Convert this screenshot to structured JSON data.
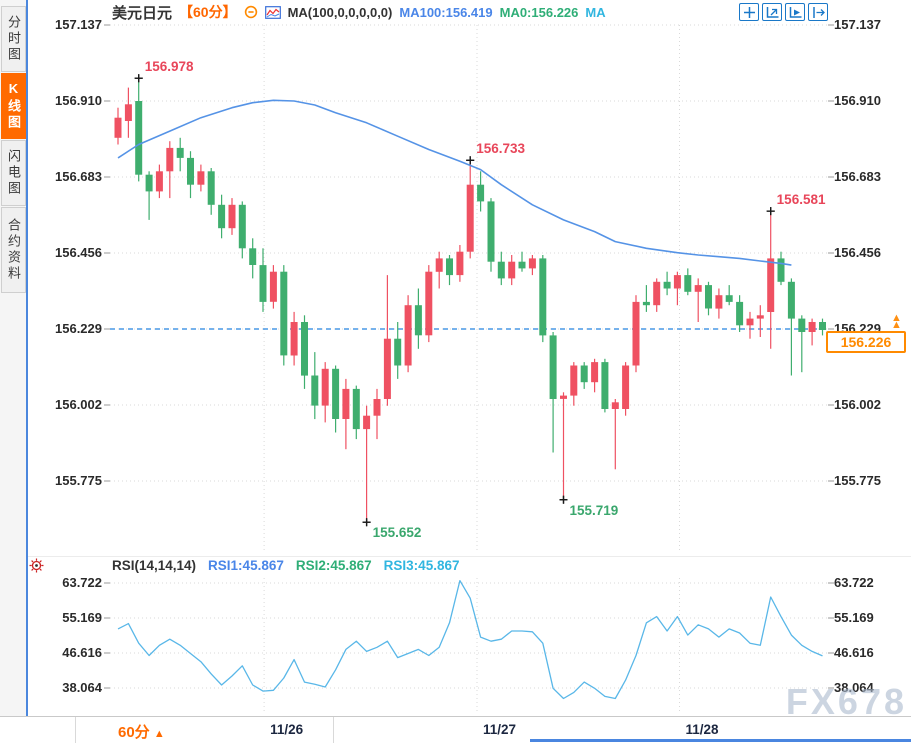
{
  "colors": {
    "up": "#ef5162",
    "down": "#3fae6e",
    "ma_line": "#5593e6",
    "rsi_line": "#59b7e8",
    "grid": "#d9d9d9",
    "dashed_price_line": "#2583e0",
    "accent_orange": "#ff6600",
    "price_box_orange": "#ff8a00",
    "annotation_red": "#e8465a",
    "annotation_green": "#3aa76d",
    "icon_blue": "#1a78c8",
    "tick": "#999999",
    "cross_marker": "#1a1a1a"
  },
  "sidebar": {
    "tabs": [
      {
        "label": "分时图",
        "active": false
      },
      {
        "label": "K线图",
        "active": true
      },
      {
        "label": "闪电图",
        "active": false
      },
      {
        "label": "合约资料",
        "active": false
      }
    ]
  },
  "header": {
    "symbol": "美元日元",
    "period": "【60分】",
    "collapse_icon": "minus-circle",
    "indicator_icon": "mini-chart",
    "ma_settings": "MA(100,0,0,0,0,0)",
    "ma100": "MA100:156.419",
    "ma0": "MA0:156.226",
    "ma_extra": "MA",
    "toolbar_icons": [
      "crosshair-icon",
      "axis-zoom-vertical-icon",
      "axis-zoom-horizontal-icon",
      "pan-right-icon"
    ]
  },
  "rsi_header": {
    "name": "RSI(14,14,14)",
    "rsi1": "RSI1:45.867",
    "rsi2": "RSI2:45.867",
    "rsi3": "RSI3:45.867"
  },
  "current_price": {
    "value": "156.226",
    "line_label": "156.229"
  },
  "footer": {
    "period_label": "60分",
    "arrow": "▲"
  },
  "watermark": "FX678",
  "chart_data": [
    {
      "type": "candlestick",
      "title": "美元日元 60分 K线图",
      "price_ticks": [
        157.137,
        156.91,
        156.683,
        156.456,
        156.229,
        156.002,
        155.775
      ],
      "dashed_line_price": 156.229,
      "current_price": 156.226,
      "ma100_last": 156.419,
      "ma0_last": 156.226,
      "x_labels": [
        "11/26",
        "11/27",
        "11/28"
      ],
      "day_start_bars": [
        14.1,
        34.65,
        54.2
      ],
      "annotations": [
        {
          "text": "156.978",
          "price": 156.978,
          "bar": 2,
          "pos": "top",
          "color": "#e8465a"
        },
        {
          "text": "156.733",
          "price": 156.733,
          "bar": 34,
          "pos": "top",
          "color": "#e8465a"
        },
        {
          "text": "156.581",
          "price": 156.581,
          "bar": 63,
          "pos": "top",
          "color": "#e8465a"
        },
        {
          "text": "155.652",
          "price": 155.652,
          "bar": 24,
          "pos": "bottom",
          "color": "#3aa76d"
        },
        {
          "text": "155.719",
          "price": 155.719,
          "bar": 43,
          "pos": "bottom",
          "color": "#3aa76d"
        }
      ],
      "candles": [
        [
          156.8,
          156.89,
          156.78,
          156.86
        ],
        [
          156.85,
          156.95,
          156.8,
          156.9
        ],
        [
          156.91,
          156.978,
          156.67,
          156.69
        ],
        [
          156.69,
          156.7,
          156.555,
          156.64
        ],
        [
          156.64,
          156.72,
          156.62,
          156.7
        ],
        [
          156.7,
          156.79,
          156.62,
          156.77
        ],
        [
          156.77,
          156.8,
          156.7,
          156.74
        ],
        [
          156.74,
          156.76,
          156.62,
          156.66
        ],
        [
          156.66,
          156.72,
          156.64,
          156.7
        ],
        [
          156.7,
          156.71,
          156.57,
          156.6
        ],
        [
          156.6,
          156.63,
          156.5,
          156.53
        ],
        [
          156.53,
          156.62,
          156.51,
          156.6
        ],
        [
          156.6,
          156.61,
          156.44,
          156.47
        ],
        [
          156.47,
          156.5,
          156.38,
          156.42
        ],
        [
          156.42,
          156.47,
          156.28,
          156.31
        ],
        [
          156.31,
          156.42,
          156.29,
          156.4
        ],
        [
          156.4,
          156.42,
          156.12,
          156.15
        ],
        [
          156.15,
          156.28,
          156.12,
          156.25
        ],
        [
          156.25,
          156.27,
          156.05,
          156.09
        ],
        [
          156.09,
          156.16,
          155.96,
          156.0
        ],
        [
          156.0,
          156.13,
          155.95,
          156.11
        ],
        [
          156.11,
          156.12,
          155.92,
          155.96
        ],
        [
          155.96,
          156.08,
          155.87,
          156.05
        ],
        [
          156.05,
          156.06,
          155.9,
          155.93
        ],
        [
          155.93,
          156.0,
          155.652,
          155.97
        ],
        [
          155.97,
          156.05,
          155.9,
          156.02
        ],
        [
          156.02,
          156.39,
          156.0,
          156.2
        ],
        [
          156.2,
          156.25,
          156.08,
          156.12
        ],
        [
          156.12,
          156.33,
          156.1,
          156.3
        ],
        [
          156.3,
          156.35,
          156.17,
          156.21
        ],
        [
          156.21,
          156.42,
          156.19,
          156.4
        ],
        [
          156.4,
          156.46,
          156.35,
          156.44
        ],
        [
          156.44,
          156.45,
          156.36,
          156.39
        ],
        [
          156.39,
          156.48,
          156.37,
          156.46
        ],
        [
          156.46,
          156.733,
          156.44,
          156.66
        ],
        [
          156.66,
          156.7,
          156.58,
          156.61
        ],
        [
          156.61,
          156.62,
          156.4,
          156.43
        ],
        [
          156.43,
          156.46,
          156.36,
          156.38
        ],
        [
          156.38,
          156.45,
          156.36,
          156.43
        ],
        [
          156.43,
          156.46,
          156.4,
          156.41
        ],
        [
          156.41,
          156.45,
          156.39,
          156.44
        ],
        [
          156.44,
          156.45,
          156.19,
          156.21
        ],
        [
          156.21,
          156.22,
          155.86,
          156.02
        ],
        [
          156.02,
          156.04,
          155.719,
          156.03
        ],
        [
          156.03,
          156.13,
          156.0,
          156.12
        ],
        [
          156.12,
          156.13,
          156.05,
          156.07
        ],
        [
          156.07,
          156.14,
          156.04,
          156.13
        ],
        [
          156.13,
          156.14,
          155.98,
          155.99
        ],
        [
          155.99,
          156.02,
          155.81,
          156.01
        ],
        [
          155.99,
          156.13,
          155.97,
          156.12
        ],
        [
          156.12,
          156.33,
          156.1,
          156.31
        ],
        [
          156.31,
          156.36,
          156.28,
          156.3
        ],
        [
          156.3,
          156.38,
          156.28,
          156.37
        ],
        [
          156.37,
          156.4,
          156.33,
          156.35
        ],
        [
          156.35,
          156.4,
          156.3,
          156.39
        ],
        [
          156.39,
          156.41,
          156.33,
          156.34
        ],
        [
          156.34,
          156.38,
          156.25,
          156.36
        ],
        [
          156.36,
          156.37,
          156.27,
          156.29
        ],
        [
          156.29,
          156.35,
          156.26,
          156.33
        ],
        [
          156.33,
          156.36,
          156.3,
          156.31
        ],
        [
          156.31,
          156.33,
          156.22,
          156.24
        ],
        [
          156.24,
          156.28,
          156.2,
          156.26
        ],
        [
          156.26,
          156.3,
          156.205,
          156.27
        ],
        [
          156.28,
          156.581,
          156.17,
          156.44
        ],
        [
          156.44,
          156.46,
          156.36,
          156.37
        ],
        [
          156.37,
          156.38,
          156.09,
          156.26
        ],
        [
          156.26,
          156.27,
          156.1,
          156.22
        ],
        [
          156.22,
          156.26,
          156.18,
          156.25
        ],
        [
          156.25,
          156.26,
          156.21,
          156.226
        ]
      ],
      "ma100_points": [
        [
          0,
          156.74
        ],
        [
          2,
          156.78
        ],
        [
          5,
          156.82
        ],
        [
          8,
          156.86
        ],
        [
          11,
          156.89
        ],
        [
          13,
          156.905
        ],
        [
          15,
          156.912
        ],
        [
          17,
          156.91
        ],
        [
          19,
          156.898
        ],
        [
          21,
          156.875
        ],
        [
          24,
          156.845
        ],
        [
          27,
          156.805
        ],
        [
          30,
          156.765
        ],
        [
          33,
          156.73
        ],
        [
          35,
          156.705
        ],
        [
          37,
          156.66
        ],
        [
          40,
          156.6
        ],
        [
          43,
          156.555
        ],
        [
          46,
          156.52
        ],
        [
          48,
          156.49
        ],
        [
          51,
          156.47
        ],
        [
          54,
          156.457
        ],
        [
          56,
          156.45
        ],
        [
          58,
          156.445
        ],
        [
          60,
          156.44
        ],
        [
          62,
          156.432
        ],
        [
          64,
          156.425
        ],
        [
          65,
          156.42
        ]
      ]
    },
    {
      "type": "line",
      "name": "RSI(14,14,14)",
      "rsi_ticks": [
        63.722,
        55.169,
        46.616,
        38.064
      ],
      "rsi1": 45.867,
      "rsi2": 45.867,
      "rsi3": 45.867,
      "values": [
        52.5,
        53.8,
        49,
        46,
        48.5,
        50,
        48.5,
        46.5,
        44.5,
        41.5,
        38.8,
        41,
        43.5,
        38.8,
        37.3,
        37.5,
        40.5,
        45,
        39.5,
        39,
        38.3,
        42.5,
        47.5,
        49.5,
        47,
        48,
        49.5,
        45.5,
        46.5,
        47.5,
        46,
        48,
        54,
        64.3,
        60,
        50.5,
        49.5,
        50,
        52,
        52,
        51.8,
        49,
        38,
        35.5,
        37,
        39.5,
        38,
        36,
        35.5,
        40,
        46,
        54,
        55.5,
        52,
        55.5,
        51,
        53.5,
        52.5,
        50.5,
        52.5,
        51.5,
        49,
        48.5,
        60.3,
        55.5,
        51,
        48.5,
        47,
        45.9
      ]
    }
  ]
}
